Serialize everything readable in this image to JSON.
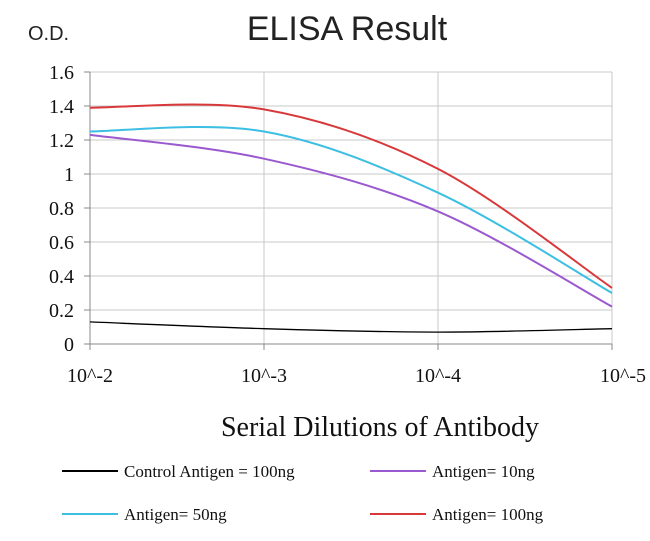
{
  "chart_data": {
    "type": "line",
    "title": "ELISA Result",
    "ylabel": "O.D.",
    "xlabel": "Serial Dilutions  of Antibody",
    "x": [
      "10^-2",
      "10^-3",
      "10^-4",
      "10^-5"
    ],
    "y_ticks": [
      "0",
      "0.2",
      "0.4",
      "0.6",
      "0.8",
      "1",
      "1.2",
      "1.4",
      "1.6"
    ],
    "ylim": [
      0,
      1.6
    ],
    "grid": true,
    "legend_position": "bottom",
    "series": [
      {
        "name": "Control Antigen = 100ng",
        "color": "#000000",
        "values": [
          0.13,
          0.09,
          0.07,
          0.09
        ]
      },
      {
        "name": "Antigen= 10ng",
        "color": "#9b59d0",
        "values": [
          1.23,
          1.09,
          0.78,
          0.22
        ]
      },
      {
        "name": "Antigen= 50ng",
        "color": "#3cbfe3",
        "values": [
          1.25,
          1.25,
          0.89,
          0.3
        ]
      },
      {
        "name": "Antigen= 100ng",
        "color": "#d9383a",
        "values": [
          1.39,
          1.38,
          1.03,
          0.33
        ]
      }
    ]
  }
}
